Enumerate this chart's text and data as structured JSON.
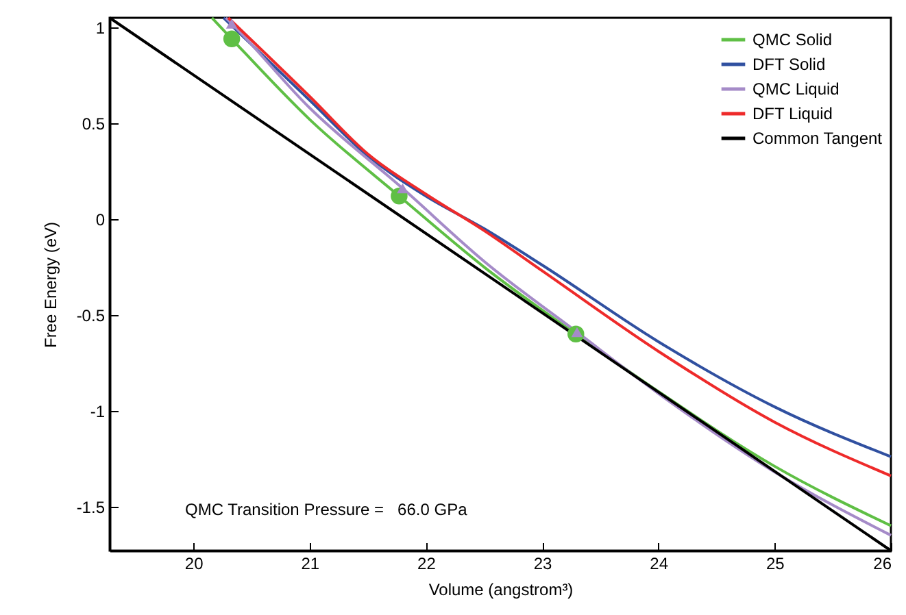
{
  "chart_data": {
    "type": "line",
    "xlabel": "Volume (angstrom³)",
    "ylabel": "Free Energy (eV)",
    "xlim": [
      19.28,
      26
    ],
    "ylim": [
      -1.73,
      1.05
    ],
    "xticks": [
      20,
      21,
      22,
      23,
      24,
      25,
      26
    ],
    "yticks": [
      -1.5,
      -1,
      -0.5,
      0,
      0.5,
      1
    ],
    "grid": false,
    "legend": "top right",
    "marker": "none",
    "line_style": "solid",
    "annotations": [
      "QMC Transition Pressure =   66.0 GPa"
    ],
    "series": [
      {
        "name": "QMC Solid",
        "color": "#5fbf45",
        "x": [
          20.16,
          20.33,
          21,
          21.77,
          22.5,
          23.29,
          24,
          25,
          26
        ],
        "values": [
          1.05,
          0.94,
          0.52,
          0.12,
          -0.25,
          -0.6,
          -0.9,
          -1.29,
          -1.6
        ]
      },
      {
        "name": "DFT Solid",
        "color": "#3050a0",
        "x": [
          20.26,
          21,
          21.5,
          22,
          22.5,
          23,
          24,
          25,
          26
        ],
        "values": [
          1.05,
          0.62,
          0.33,
          0.12,
          -0.05,
          -0.24,
          -0.64,
          -0.98,
          -1.24
        ]
      },
      {
        "name": "QMC Liquid",
        "color": "#a58bc8",
        "x": [
          20.28,
          20.33,
          21,
          21.8,
          22.5,
          23.3,
          24,
          25,
          26
        ],
        "values": [
          1.05,
          1.02,
          0.58,
          0.16,
          -0.22,
          -0.59,
          -0.91,
          -1.32,
          -1.65
        ]
      },
      {
        "name": "DFT Liquid",
        "color": "#ee2a2a",
        "x": [
          20.3,
          21,
          21.5,
          22,
          22.5,
          23,
          24,
          25,
          26
        ],
        "values": [
          1.05,
          0.64,
          0.34,
          0.13,
          -0.06,
          -0.27,
          -0.69,
          -1.06,
          -1.34
        ]
      },
      {
        "name": "Common Tangent",
        "color": "#000000",
        "x": [
          19.28,
          26
        ],
        "values": [
          1.05,
          -1.73
        ]
      },
      {
        "type": "scatter",
        "marker": "circle",
        "color": "#5fbf45",
        "x": [
          20.33,
          21.77,
          23.29
        ],
        "values": [
          0.94,
          0.12,
          -0.6
        ]
      },
      {
        "type": "scatter",
        "marker": "triangle",
        "color": "#a58bc8",
        "x": [
          20.33,
          21.8,
          23.3
        ],
        "values": [
          1.02,
          0.16,
          -0.59
        ]
      }
    ]
  }
}
